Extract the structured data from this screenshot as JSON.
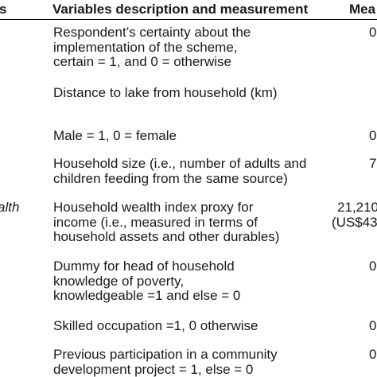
{
  "header": {
    "var_fragment": "s",
    "description": "Variables description and measurement",
    "mean_fragment": "Mea"
  },
  "rows": [
    {
      "name_fragment": "",
      "description_lines": [
        "Respondent’s certainty about the",
        "implementation of the scheme,",
        "certain = 1, and 0 = otherwise"
      ],
      "mean_lines": [
        "0"
      ]
    },
    {
      "name_fragment": "",
      "description_lines": [
        "Distance to lake from household (km)"
      ],
      "mean_lines": []
    },
    {
      "name_fragment": "",
      "description_lines": [
        "Male = 1, 0 = female"
      ],
      "mean_lines": [
        "0"
      ]
    },
    {
      "name_fragment": "",
      "description_lines": [
        "Household size (i.e., number of adults and",
        "children feeding from the same source)"
      ],
      "mean_lines": [
        "7"
      ]
    },
    {
      "name_fragment": "alth",
      "description_lines": [
        "Household wealth index proxy for",
        "income (i.e., measured in terms of",
        "household  assets and other durables)"
      ],
      "mean_lines": [
        "21,210",
        "(US$43"
      ]
    },
    {
      "name_fragment": "",
      "description_lines": [
        "Dummy for head of household",
        "knowledge of poverty,",
        "knowledgeable =1 and else = 0"
      ],
      "mean_lines": [
        "0"
      ]
    },
    {
      "name_fragment": "",
      "description_lines": [
        "Skilled occupation =1, 0 otherwise"
      ],
      "mean_lines": [
        "0"
      ]
    },
    {
      "name_fragment": "",
      "description_lines": [
        "Previous participation in a community",
        "development project = 1, else = 0"
      ],
      "mean_lines": [
        "0"
      ]
    }
  ]
}
